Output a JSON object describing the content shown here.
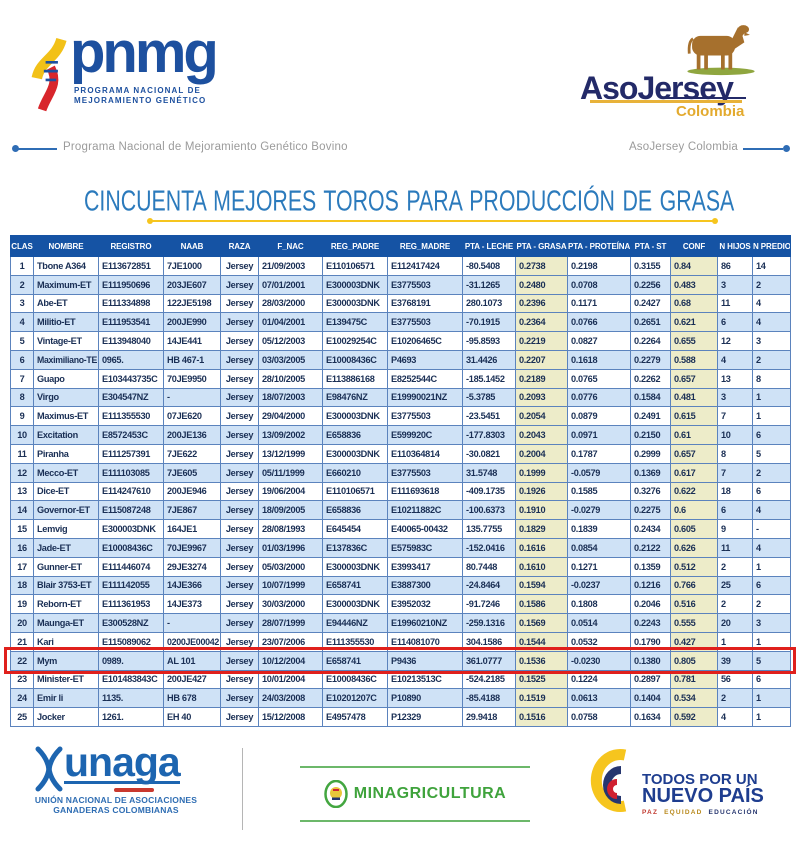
{
  "header": {
    "pnmg": {
      "wordmark": "pnmg",
      "subtitle1": "PROGRAMA NACIONAL DE",
      "subtitle2": "MEJORAMIENTO GENÉTICO"
    },
    "asojersey": {
      "wordmark": "AsoJersey",
      "subtitle": "Colombia"
    },
    "tagline_left": "Programa Nacional de Mejoramiento Genético Bovino",
    "tagline_right": "AsoJersey Colombia"
  },
  "title": "CINCUENTA MEJORES TOROS PARA PRODUCCIÓN DE GRASA",
  "table": {
    "columns": [
      "CLAS",
      "NOMBRE",
      "REGISTRO",
      "NAAB",
      "RAZA",
      "F_NAC",
      "REG_PADRE",
      "REG_MADRE",
      "PTA - LECHE",
      "PTA - GRASA",
      "PTA - PROTEÍNA",
      "PTA - ST",
      "CONF",
      "N HIJOS",
      "N PREDIO"
    ],
    "highlighted_row_clas": "22",
    "rows": [
      [
        "1",
        "Tbone A364",
        "E113672851",
        "7JE1000",
        "Jersey",
        "21/09/2003",
        "E110106571",
        "E112417424",
        "-80.5408",
        "0.2738",
        "0.2198",
        "0.3155",
        "0.84",
        "86",
        "14"
      ],
      [
        "2",
        "Maximum-ET",
        "E111950696",
        "203JE607",
        "Jersey",
        "07/01/2001",
        "E300003DNK",
        "E3775503",
        "-31.1265",
        "0.2480",
        "0.0708",
        "0.2256",
        "0.483",
        "3",
        "2"
      ],
      [
        "3",
        "Abe-ET",
        "E111334898",
        "122JE5198",
        "Jersey",
        "28/03/2000",
        "E300003DNK",
        "E3768191",
        "280.1073",
        "0.2396",
        "0.1171",
        "0.2427",
        "0.68",
        "11",
        "4"
      ],
      [
        "4",
        "Militio-ET",
        "E111953541",
        "200JE990",
        "Jersey",
        "01/04/2001",
        "E139475C",
        "E3775503",
        "-70.1915",
        "0.2364",
        "0.0766",
        "0.2651",
        "0.621",
        "6",
        "4"
      ],
      [
        "5",
        "Vintage-ET",
        "E113948040",
        "14JE441",
        "Jersey",
        "05/12/2003",
        "E10029254C",
        "E10206465C",
        "-95.8593",
        "0.2219",
        "0.0827",
        "0.2264",
        "0.655",
        "12",
        "3"
      ],
      [
        "6",
        "Maximiliano-TE",
        "0965.",
        "HB 467-1",
        "Jersey",
        "03/03/2005",
        "E10008436C",
        "P4693",
        "31.4426",
        "0.2207",
        "0.1618",
        "0.2279",
        "0.588",
        "4",
        "2"
      ],
      [
        "7",
        "Guapo",
        "E103443735C",
        "70JE9950",
        "Jersey",
        "28/10/2005",
        "E113886168",
        "E8252544C",
        "-185.1452",
        "0.2189",
        "0.0765",
        "0.2262",
        "0.657",
        "13",
        "8"
      ],
      [
        "8",
        "Virgo",
        "E304547NZ",
        "-",
        "Jersey",
        "18/07/2003",
        "E98476NZ",
        "E19990021NZ",
        "-5.3785",
        "0.2093",
        "0.0776",
        "0.1584",
        "0.481",
        "3",
        "1"
      ],
      [
        "9",
        "Maximus-ET",
        "E111355530",
        "07JE620",
        "Jersey",
        "29/04/2000",
        "E300003DNK",
        "E3775503",
        "-23.5451",
        "0.2054",
        "0.0879",
        "0.2491",
        "0.615",
        "7",
        "1"
      ],
      [
        "10",
        "Excitation",
        "E8572453C",
        "200JE136",
        "Jersey",
        "13/09/2002",
        "E658836",
        "E599920C",
        "-177.8303",
        "0.2043",
        "0.0971",
        "0.2150",
        "0.61",
        "10",
        "6"
      ],
      [
        "11",
        "Piranha",
        "E111257391",
        "7JE622",
        "Jersey",
        "13/12/1999",
        "E300003DNK",
        "E110364814",
        "-30.0821",
        "0.2004",
        "0.1787",
        "0.2999",
        "0.657",
        "8",
        "5"
      ],
      [
        "12",
        "Mecco-ET",
        "E111103085",
        "7JE605",
        "Jersey",
        "05/11/1999",
        "E660210",
        "E3775503",
        "31.5748",
        "0.1999",
        "-0.0579",
        "0.1369",
        "0.617",
        "7",
        "2"
      ],
      [
        "13",
        "Dice-ET",
        "E114247610",
        "200JE946",
        "Jersey",
        "19/06/2004",
        "E110106571",
        "E111693618",
        "-409.1735",
        "0.1926",
        "0.1585",
        "0.3276",
        "0.622",
        "18",
        "6"
      ],
      [
        "14",
        "Governor-ET",
        "E115087248",
        "7JE867",
        "Jersey",
        "18/09/2005",
        "E658836",
        "E10211882C",
        "-100.6373",
        "0.1910",
        "-0.0279",
        "0.2275",
        "0.6",
        "6",
        "4"
      ],
      [
        "15",
        "Lemvig",
        "E300003DNK",
        "164JE1",
        "Jersey",
        "28/08/1993",
        "E645454",
        "E40065-00432",
        "135.7755",
        "0.1829",
        "0.1839",
        "0.2434",
        "0.605",
        "9",
        "-"
      ],
      [
        "16",
        "Jade-ET",
        "E10008436C",
        "70JE9967",
        "Jersey",
        "01/03/1996",
        "E137836C",
        "E575983C",
        "-152.0416",
        "0.1616",
        "0.0854",
        "0.2122",
        "0.626",
        "11",
        "4"
      ],
      [
        "17",
        "Gunner-ET",
        "E111446074",
        "29JE3274",
        "Jersey",
        "05/03/2000",
        "E300003DNK",
        "E3993417",
        "80.7448",
        "0.1610",
        "0.1271",
        "0.1359",
        "0.512",
        "2",
        "1"
      ],
      [
        "18",
        "Blair 3753-ET",
        "E111142055",
        "14JE366",
        "Jersey",
        "10/07/1999",
        "E658741",
        "E3887300",
        "-24.8464",
        "0.1594",
        "-0.0237",
        "0.1216",
        "0.766",
        "25",
        "6"
      ],
      [
        "19",
        "Reborn-ET",
        "E111361953",
        "14JE373",
        "Jersey",
        "30/03/2000",
        "E300003DNK",
        "E3952032",
        "-91.7246",
        "0.1586",
        "0.1808",
        "0.2046",
        "0.516",
        "2",
        "2"
      ],
      [
        "20",
        "Maunga-ET",
        "E300528NZ",
        "-",
        "Jersey",
        "28/07/1999",
        "E94446NZ",
        "E19960210NZ",
        "-259.1316",
        "0.1569",
        "0.0514",
        "0.2243",
        "0.555",
        "20",
        "3"
      ],
      [
        "21",
        "Kari",
        "E115089062",
        "0200JE00042",
        "Jersey",
        "23/07/2006",
        "E111355530",
        "E114081070",
        "304.1586",
        "0.1544",
        "0.0532",
        "0.1790",
        "0.427",
        "1",
        "1"
      ],
      [
        "22",
        "Mym",
        "0989.",
        "AL 101",
        "Jersey",
        "10/12/2004",
        "E658741",
        "P9436",
        "361.0777",
        "0.1536",
        "-0.0230",
        "0.1380",
        "0.805",
        "39",
        "5"
      ],
      [
        "23",
        "Minister-ET",
        "E101483843C",
        "200JE427",
        "Jersey",
        "10/01/2004",
        "E10008436C",
        "E10213513C",
        "-524.2185",
        "0.1525",
        "0.1224",
        "0.2897",
        "0.781",
        "56",
        "6"
      ],
      [
        "24",
        "Emir li",
        "1135.",
        "HB 678",
        "Jersey",
        "24/03/2008",
        "E10201207C",
        "P10890",
        "-85.4188",
        "0.1519",
        "0.0613",
        "0.1404",
        "0.534",
        "2",
        "1"
      ],
      [
        "25",
        "Jocker",
        "1261.",
        "EH 40",
        "Jersey",
        "15/12/2008",
        "E4957478",
        "P12329",
        "29.9418",
        "0.1516",
        "0.0758",
        "0.1634",
        "0.592",
        "4",
        "1"
      ]
    ]
  },
  "footer": {
    "unaga": {
      "wordmark": "unaga",
      "caps1": "UNIÓN NACIONAL DE ASOCIACIONES",
      "caps2": "GANADERAS COLOMBIANAS"
    },
    "minagricultura": {
      "label": "MINAGRICULTURA"
    },
    "nuevo_pais": {
      "line1": "TODOS POR UN",
      "line2": "NUEVO PAÍS",
      "word_paz": "PAZ",
      "word_equidad": "EQUIDAD",
      "word_educacion": "EDUCACIÓN"
    }
  },
  "colors": {
    "header_blue": "#1553a4",
    "row_alt_blue": "#cfe2f6",
    "column_highlight": "#edecc9",
    "highlight_red": "#e0201c",
    "title_blue": "#2b7abc",
    "brand_yellow": "#f6c51e"
  }
}
